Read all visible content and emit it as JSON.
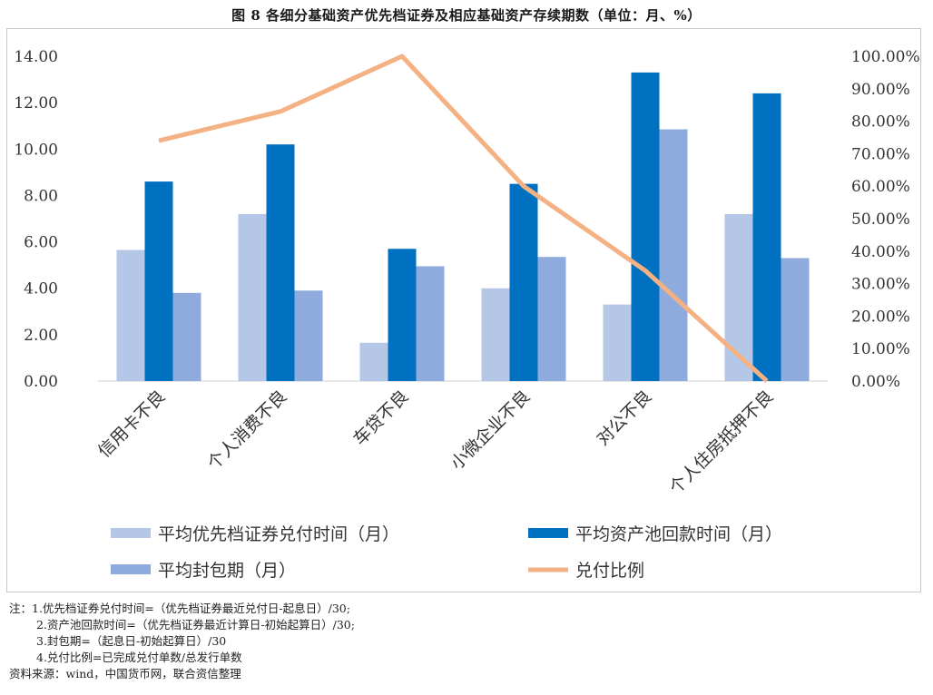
{
  "figure": {
    "title": "图 8   各细分基础资产优先档证券及相应基础资产存续期数（单位：月、%）"
  },
  "notes": [
    "注：1.优先档证券兑付时间=（优先档证券最近兑付日-起息日）/30;",
    "2.资产池回款时间=（优先档证券最近计算日-初始起算日）/30;",
    "3.封包期=（起息日-初始起算日）/30",
    "4.兑付比例=已完成兑付单数/总发行单数"
  ],
  "source": "资料来源：wind，中国货币网，联合资信整理",
  "chart_data": {
    "type": "bar",
    "categories": [
      "信用卡不良",
      "个人消费不良",
      "车贷不良",
      "小微企业不良",
      "对公不良",
      "个人住房抵押不良"
    ],
    "y_left": {
      "ylim": [
        0,
        14
      ],
      "ticks": [
        "0.00",
        "2.00",
        "4.00",
        "6.00",
        "8.00",
        "10.00",
        "12.00",
        "14.00"
      ]
    },
    "y_right": {
      "ylim": [
        0,
        100
      ],
      "ticks": [
        "0.00%",
        "10.00%",
        "20.00%",
        "30.00%",
        "40.00%",
        "50.00%",
        "60.00%",
        "70.00%",
        "80.00%",
        "90.00%",
        "100.00%"
      ]
    },
    "series": [
      {
        "name": "平均优先档证券兑付时间（月）",
        "kind": "bar",
        "axis": "left",
        "color": "#b4c7e7",
        "values": [
          5.65,
          7.2,
          1.65,
          4.0,
          3.3,
          7.2
        ]
      },
      {
        "name": "平均资产池回款时间（月）",
        "kind": "bar",
        "axis": "left",
        "color": "#0070c0",
        "values": [
          8.6,
          10.2,
          5.7,
          8.5,
          13.3,
          12.4
        ]
      },
      {
        "name": "平均封包期（月）",
        "kind": "bar",
        "axis": "left",
        "color": "#8faadc",
        "values": [
          3.8,
          3.9,
          4.95,
          5.35,
          10.85,
          5.3
        ]
      },
      {
        "name": "兑付比例",
        "kind": "line",
        "axis": "right",
        "color": "#f4b183",
        "values": [
          74.0,
          83.0,
          100.0,
          60.0,
          34.0,
          0.0
        ]
      }
    ],
    "legend_position": "bottom",
    "grid": false
  }
}
